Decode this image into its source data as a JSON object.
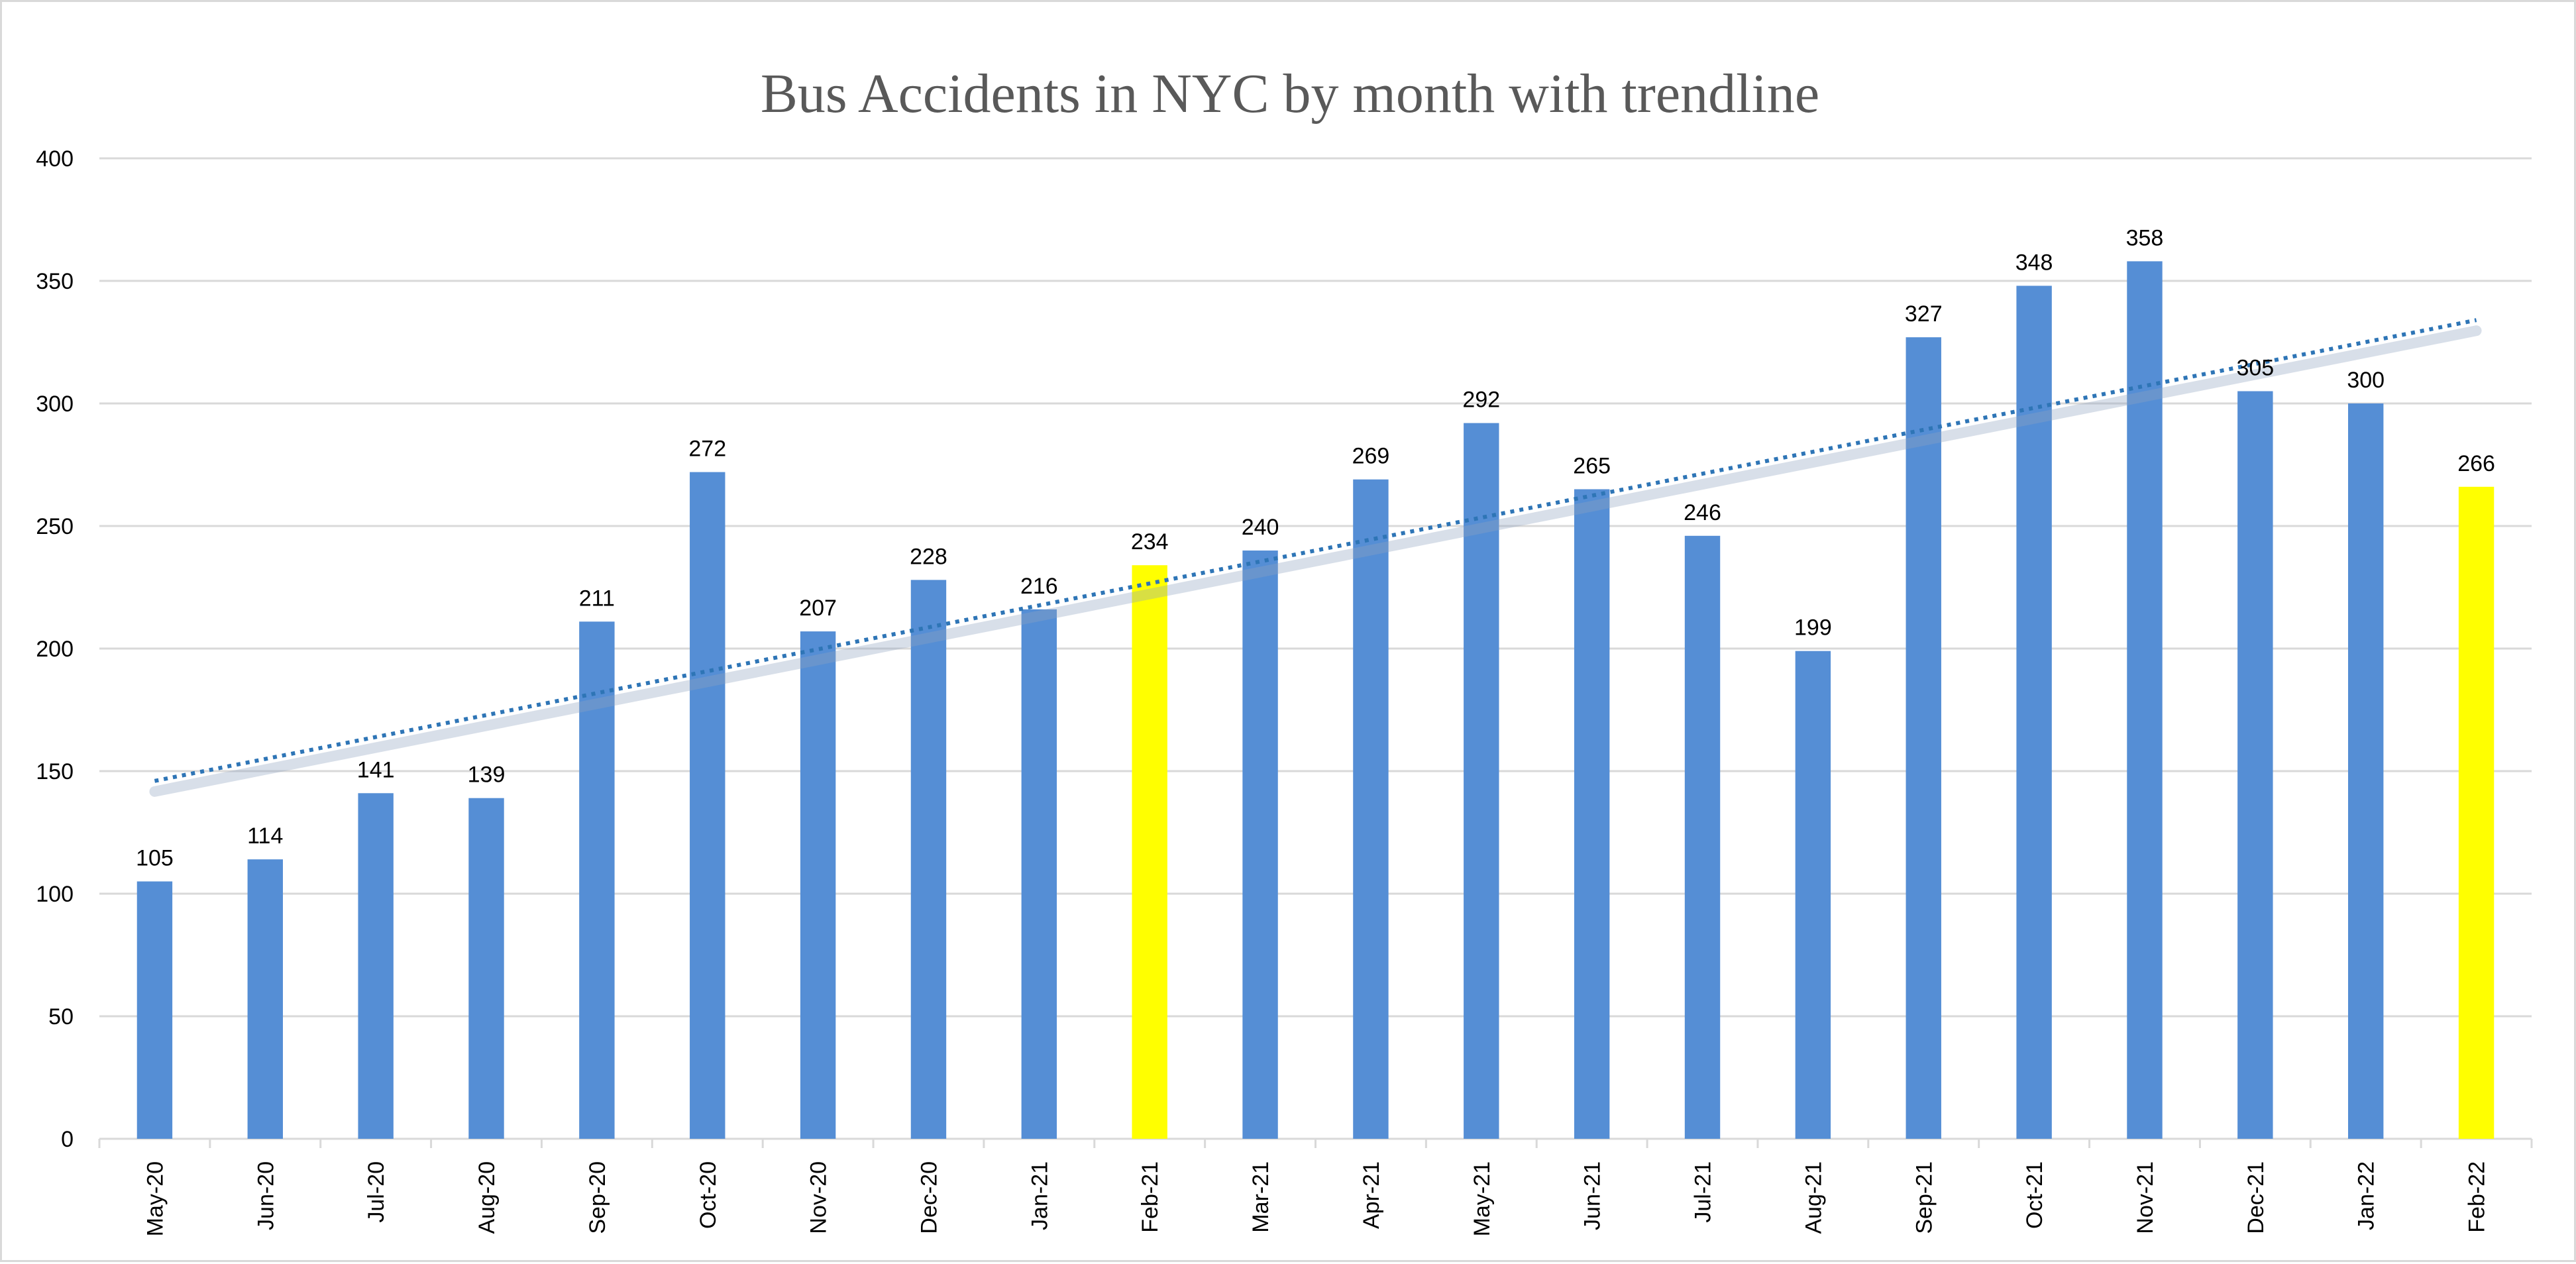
{
  "chart_data": {
    "type": "bar",
    "title": "Bus Accidents in NYC by month with trendline",
    "xlabel": "",
    "ylabel": "",
    "ylim": [
      0,
      400
    ],
    "yticks": [
      0,
      50,
      100,
      150,
      200,
      250,
      300,
      350,
      400
    ],
    "grid": true,
    "legend": "none",
    "categories": [
      "May-20",
      "Jun-20",
      "Jul-20",
      "Aug-20",
      "Sep-20",
      "Oct-20",
      "Nov-20",
      "Dec-20",
      "Jan-21",
      "Feb-21",
      "Mar-21",
      "Apr-21",
      "May-21",
      "Jun-21",
      "Jul-21",
      "Aug-21",
      "Sep-21",
      "Oct-21",
      "Nov-21",
      "Dec-21",
      "Jan-22",
      "Feb-22"
    ],
    "values": [
      105,
      114,
      141,
      139,
      211,
      272,
      207,
      228,
      216,
      234,
      240,
      269,
      292,
      265,
      246,
      199,
      327,
      348,
      358,
      305,
      300,
      266
    ],
    "colors": {
      "bar": "#558ed5",
      "highlight": "#ffff00",
      "trendline": "#2e75b6"
    },
    "highlighted_categories": [
      "Feb-21",
      "Feb-22"
    ],
    "trendline": {
      "type": "linear",
      "style": "dotted",
      "start_value": 146,
      "end_value": 334
    }
  }
}
